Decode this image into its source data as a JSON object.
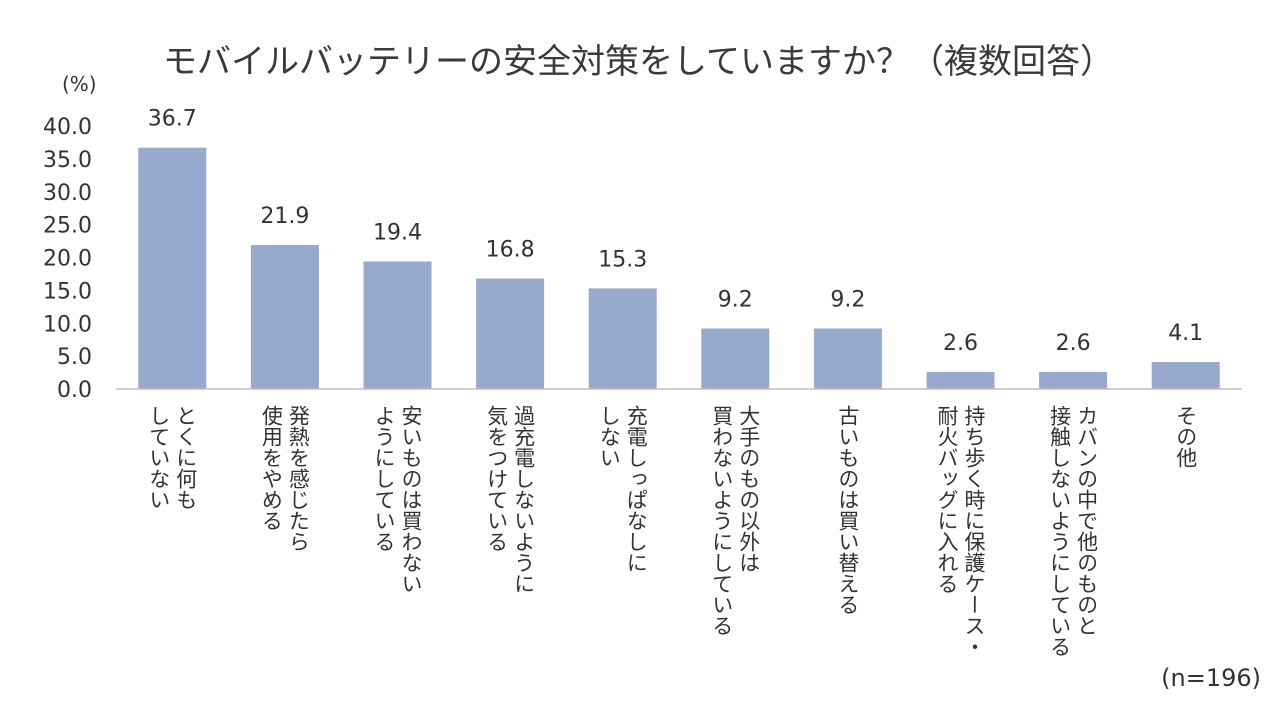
{
  "chart_data": {
    "type": "bar",
    "title": "モバイルバッテリーの安全対策をしていますか？（複数回答）",
    "unit_label": "(%)",
    "note": "(n=196)",
    "ylim": [
      0,
      40
    ],
    "yticks": [
      "0.0",
      "5.0",
      "10.0",
      "15.0",
      "20.0",
      "25.0",
      "30.0",
      "35.0",
      "40.0"
    ],
    "grid": false,
    "categories": [
      [
        "とくに何も",
        "していない"
      ],
      [
        "発熱を感じたら",
        "使用をやめる"
      ],
      [
        "安いものは買わない",
        "ようにしている"
      ],
      [
        "過充電しないように",
        "気をつけている"
      ],
      [
        "充電しっぱなしに",
        "しない"
      ],
      [
        "大手のもの以外は",
        "買わないようにしている"
      ],
      [
        "古いものは買い替える"
      ],
      [
        "持ち歩く時に保護ケース・",
        "耐火バッグに入れる"
      ],
      [
        "カバンの中で他のものと",
        "接触しないようにしている"
      ],
      [
        "その他"
      ]
    ],
    "values": [
      36.7,
      21.9,
      19.4,
      16.8,
      15.3,
      9.2,
      9.2,
      2.6,
      2.6,
      4.1
    ],
    "value_labels": [
      "36.7",
      "21.9",
      "19.4",
      "16.8",
      "15.3",
      "9.2",
      "9.2",
      "2.6",
      "2.6",
      "4.1"
    ],
    "bar_color": "#97a9cd",
    "axis_color": "#bfbfbf"
  }
}
